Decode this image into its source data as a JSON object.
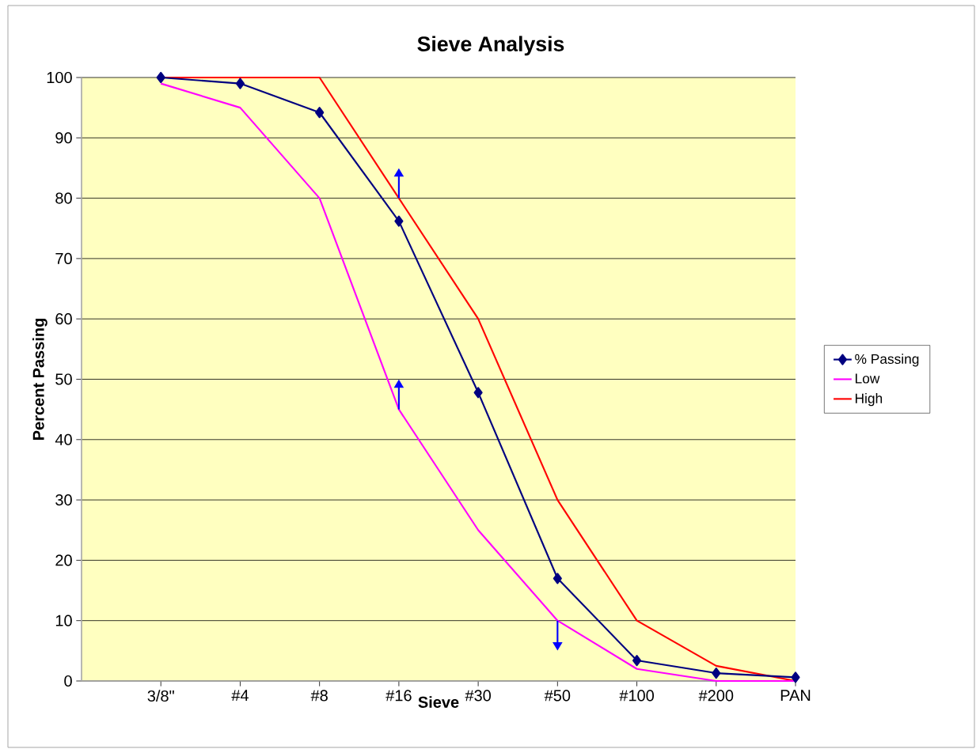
{
  "chart_data": {
    "type": "line",
    "title": "Sieve Analysis",
    "xlabel": "Sieve",
    "ylabel": "Percent Passing",
    "categories": [
      "3/8\"",
      "#4",
      "#8",
      "#16",
      "#30",
      "#50",
      "#100",
      "#200",
      "PAN"
    ],
    "series": [
      {
        "name": "% Passing",
        "color": "#000080",
        "marker": "diamond",
        "values": [
          100,
          99,
          94.2,
          76.2,
          47.8,
          17,
          3.4,
          1.3,
          0.6
        ]
      },
      {
        "name": "Low",
        "color": "#ff00ff",
        "marker": "none",
        "values": [
          99,
          95,
          80,
          45,
          25,
          10,
          2,
          0,
          0
        ]
      },
      {
        "name": "High",
        "color": "#ff0000",
        "marker": "none",
        "values": [
          100,
          100,
          100,
          80,
          60,
          30,
          10,
          2.5,
          0
        ]
      }
    ],
    "ylim": [
      0,
      100
    ],
    "yticks": [
      0,
      10,
      20,
      30,
      40,
      50,
      60,
      70,
      80,
      90,
      100
    ],
    "grid": "y",
    "legend": "right"
  }
}
